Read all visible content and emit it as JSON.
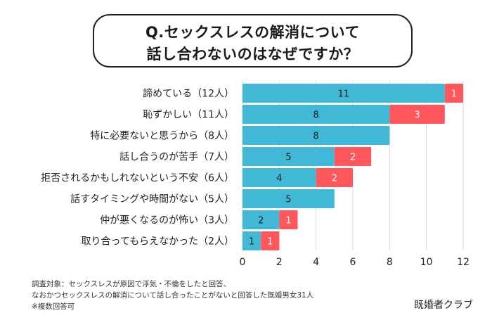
{
  "title": {
    "line1": "Q.セックスレスの解消について",
    "line2": "話し合わないのはなぜですか？"
  },
  "chart_data": {
    "type": "bar",
    "orientation": "horizontal",
    "stacked": true,
    "categories": [
      "諦めている（12人）",
      "恥ずかしい（11人）",
      "特に必要ないと思うから（8人）",
      "話し合うのが苦手（7人）",
      "拒否されるかもしれないという不安（6人）",
      "話すタイミングや時間がない（5人）",
      "仲が悪くなるのが怖い（3人）",
      "取り合ってもらえなかった（2人）"
    ],
    "series": [
      {
        "name": "",
        "color": "#42B8D7",
        "values": [
          11,
          8,
          8,
          5,
          4,
          5,
          2,
          1
        ]
      },
      {
        "name": "",
        "color": "#FF575C",
        "values": [
          1,
          3,
          0,
          2,
          2,
          0,
          1,
          1
        ]
      }
    ],
    "xlim": [
      0,
      12
    ],
    "xticks": [
      "0",
      "2",
      "4",
      "6",
      "8",
      "10",
      "12"
    ],
    "grid": true,
    "title": "Q.セックスレスの解消について話し合わないのはなぜですか？",
    "xlabel": "",
    "ylabel": ""
  },
  "footnote": {
    "line1": "調査対象：セックスレスが原因で浮気・不倫をしたと回答、",
    "line2": "なおかつセックスレスの解消について話し合ったことがないと回答した既婚男女31人",
    "line3": "※複数回答可"
  },
  "brand": "既婚者クラブ"
}
